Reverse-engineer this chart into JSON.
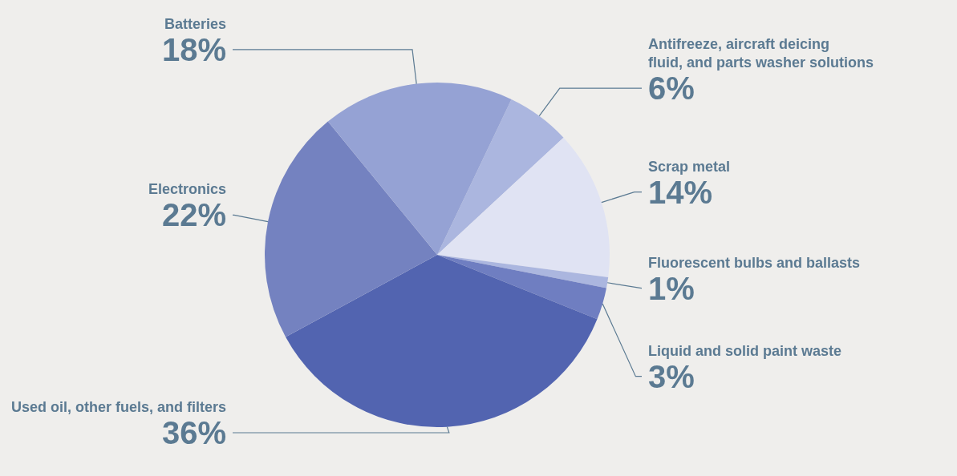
{
  "chart_data": {
    "type": "pie",
    "categories": [
      "Antifreeze, aircraft deicing fluid, and parts washer solutions",
      "Scrap metal",
      "Fluorescent bulbs and ballasts",
      "Liquid and solid paint waste",
      "Used oil, other fuels, and filters",
      "Electronics",
      "Batteries"
    ],
    "values": [
      6,
      14,
      1,
      3,
      36,
      22,
      18
    ],
    "colors": [
      "#abb6df",
      "#e0e3f3",
      "#abb6df",
      "#6f7ec1",
      "#5264b0",
      "#7482c0",
      "#95a2d4"
    ],
    "value_labels": [
      "6%",
      "14%",
      "1%",
      "3%",
      "36%",
      "22%",
      "18%"
    ]
  }
}
